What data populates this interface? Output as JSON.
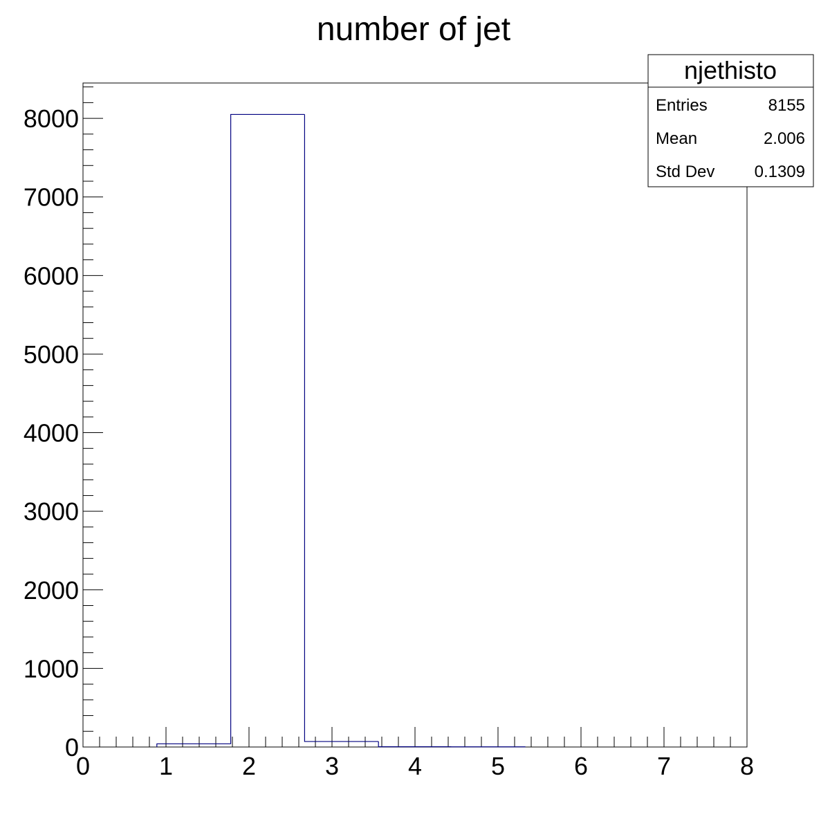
{
  "chart_data": {
    "type": "bar",
    "title": "number of jet",
    "xlabel": "",
    "ylabel": "",
    "xlim": [
      0,
      8
    ],
    "ylim": [
      0,
      8450
    ],
    "x_ticks": [
      "0",
      "1",
      "2",
      "3",
      "4",
      "5",
      "6",
      "7",
      "8"
    ],
    "y_ticks": [
      "0",
      "1000",
      "2000",
      "3000",
      "4000",
      "5000",
      "6000",
      "7000",
      "8000"
    ],
    "bins": [
      {
        "x0": 0.89,
        "x1": 1.78,
        "value": 40
      },
      {
        "x0": 1.78,
        "x1": 2.67,
        "value": 8050
      },
      {
        "x0": 2.67,
        "x1": 3.56,
        "value": 70
      },
      {
        "x0": 3.56,
        "x1": 4.44,
        "value": 3
      },
      {
        "x0": 4.44,
        "x1": 5.33,
        "value": 2
      }
    ],
    "line_color": "#000080",
    "stats_box": {
      "name": "njethisto",
      "rows": [
        {
          "label": "Entries",
          "value": "8155"
        },
        {
          "label": "Mean",
          "value": "2.006"
        },
        {
          "label": "Std Dev",
          "value": "0.1309"
        }
      ]
    }
  }
}
